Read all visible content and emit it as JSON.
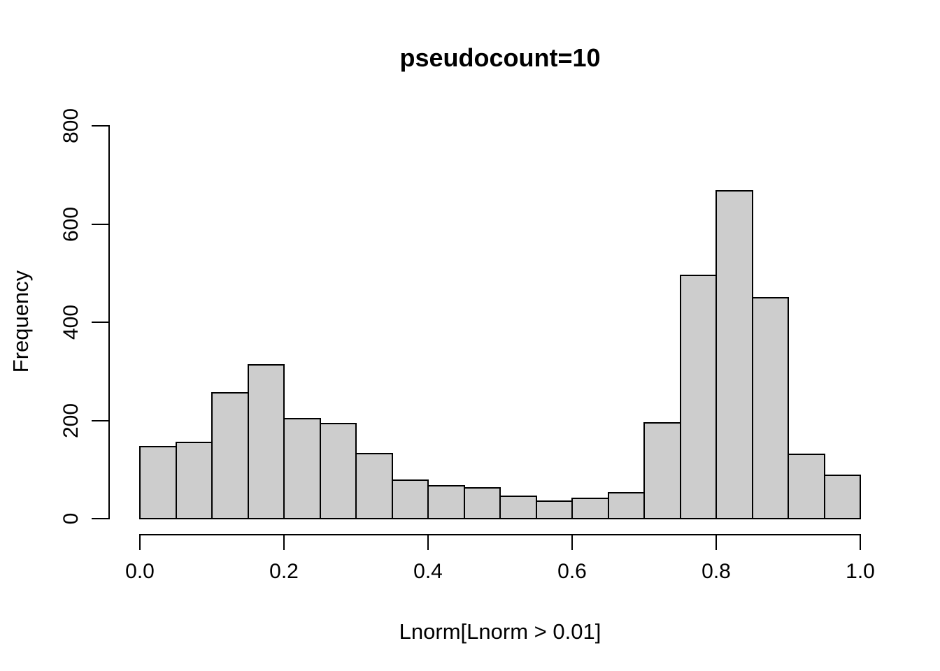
{
  "chart_data": {
    "type": "bar",
    "subtype": "histogram",
    "title": "pseudocount=10",
    "xlabel": "Lnorm[Lnorm > 0.01]",
    "ylabel": "Frequency",
    "xlim": [
      0.0,
      1.0
    ],
    "ylim": [
      0,
      800
    ],
    "bin_width": 0.05,
    "bin_edges": [
      0.0,
      0.05,
      0.1,
      0.15,
      0.2,
      0.25,
      0.3,
      0.35,
      0.4,
      0.45,
      0.5,
      0.55,
      0.6,
      0.65,
      0.7,
      0.75,
      0.8,
      0.85,
      0.9,
      0.95,
      1.0
    ],
    "values": [
      146,
      155,
      256,
      313,
      203,
      193,
      133,
      78,
      67,
      63,
      45,
      35,
      41,
      53,
      195,
      495,
      667,
      450,
      131,
      88
    ],
    "x_ticks": [
      0.0,
      0.2,
      0.4,
      0.6,
      0.8,
      1.0
    ],
    "x_tick_labels": [
      "0.0",
      "0.2",
      "0.4",
      "0.6",
      "0.8",
      "1.0"
    ],
    "y_ticks": [
      0,
      200,
      400,
      600,
      800
    ],
    "y_tick_labels": [
      "0",
      "200",
      "400",
      "600",
      "800"
    ],
    "bar_fill": "#cdcdcd",
    "bar_border": "#000000",
    "axis_color": "#000000",
    "grid": false,
    "legend": false
  }
}
